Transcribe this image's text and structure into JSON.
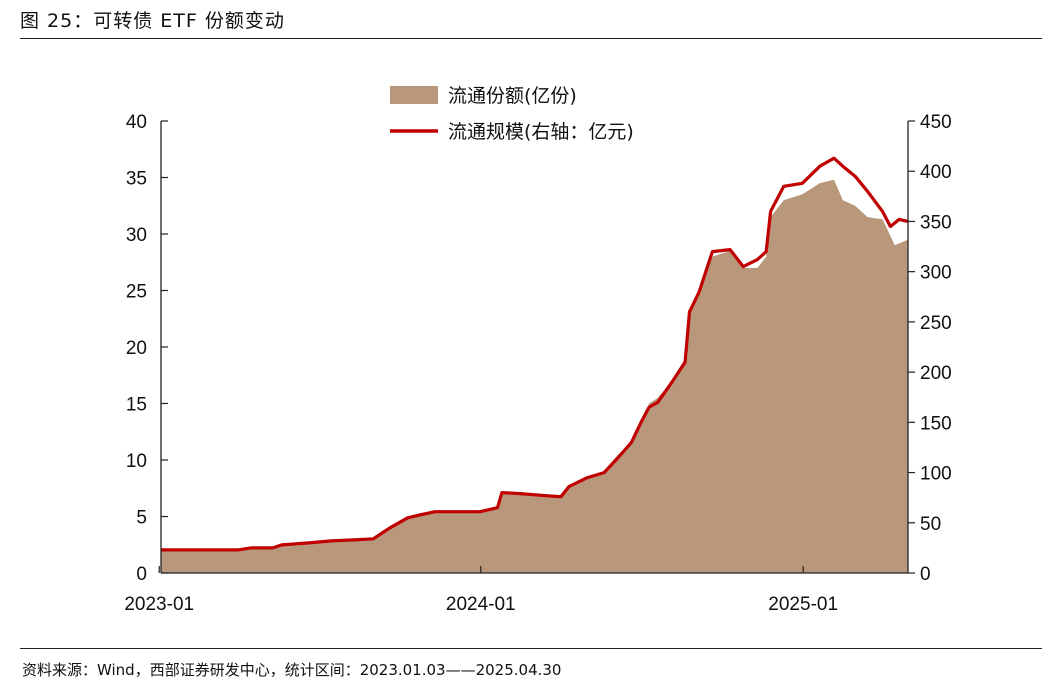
{
  "figure": {
    "title": "图 25：可转债 ETF 份额变动",
    "source": "资料来源：Wind，西部证券研发中心，统计区间：2023.01.03——2025.04.30"
  },
  "chart_data": {
    "type": "area",
    "title": "",
    "x_ticks": [
      "2023-01",
      "2024-01",
      "2025-01"
    ],
    "x_range": [
      "2023-01-03",
      "2025-04-30"
    ],
    "legend_position": "top-center",
    "grid": false,
    "left_axis": {
      "ylim": [
        0,
        40
      ],
      "ticks": [
        0,
        5,
        10,
        15,
        20,
        25,
        30,
        35,
        40
      ]
    },
    "right_axis": {
      "ylim": [
        0,
        450
      ],
      "ticks": [
        0,
        50,
        100,
        150,
        200,
        250,
        300,
        350,
        400,
        450
      ]
    },
    "series": [
      {
        "name": "流通份额(亿份)",
        "type": "area",
        "axis": "left",
        "color": "#b8977a",
        "points": [
          [
            "2023-01-03",
            2.1
          ],
          [
            "2023-02-15",
            2.1
          ],
          [
            "2023-03-31",
            2.0
          ],
          [
            "2023-04-10",
            2.2
          ],
          [
            "2023-05-10",
            2.2
          ],
          [
            "2023-05-20",
            2.5
          ],
          [
            "2023-06-20",
            2.6
          ],
          [
            "2023-07-15",
            2.8
          ],
          [
            "2023-08-10",
            2.9
          ],
          [
            "2023-09-01",
            3.0
          ],
          [
            "2023-09-20",
            4.0
          ],
          [
            "2023-10-10",
            5.0
          ],
          [
            "2023-10-25",
            5.3
          ],
          [
            "2023-11-15",
            5.4
          ],
          [
            "2023-12-10",
            5.4
          ],
          [
            "2023-12-31",
            5.5
          ],
          [
            "2024-01-20",
            5.8
          ],
          [
            "2024-01-25",
            7.1
          ],
          [
            "2024-02-15",
            7.0
          ],
          [
            "2024-03-15",
            6.9
          ],
          [
            "2024-04-01",
            6.8
          ],
          [
            "2024-04-15",
            8.0
          ],
          [
            "2024-05-01",
            8.5
          ],
          [
            "2024-05-20",
            9.0
          ],
          [
            "2024-06-05",
            10.5
          ],
          [
            "2024-06-20",
            11.5
          ],
          [
            "2024-07-01",
            13.0
          ],
          [
            "2024-07-10",
            15.0
          ],
          [
            "2024-07-20",
            15.5
          ],
          [
            "2024-08-05",
            17.0
          ],
          [
            "2024-08-20",
            19.0
          ],
          [
            "2024-08-25",
            23.0
          ],
          [
            "2024-09-05",
            25.0
          ],
          [
            "2024-09-20",
            28.0
          ],
          [
            "2024-10-10",
            28.5
          ],
          [
            "2024-10-25",
            27.0
          ],
          [
            "2024-11-10",
            27.0
          ],
          [
            "2024-11-20",
            28.0
          ],
          [
            "2024-11-25",
            31.5
          ],
          [
            "2024-12-10",
            33.0
          ],
          [
            "2024-12-31",
            33.5
          ],
          [
            "2025-01-20",
            34.5
          ],
          [
            "2025-02-05",
            34.8
          ],
          [
            "2025-02-15",
            33.0
          ],
          [
            "2025-03-01",
            32.5
          ],
          [
            "2025-03-15",
            31.5
          ],
          [
            "2025-04-01",
            31.3
          ],
          [
            "2025-04-15",
            29.0
          ],
          [
            "2025-04-30",
            29.5
          ]
        ]
      },
      {
        "name": "流通规模(右轴：亿元)",
        "type": "line",
        "axis": "right",
        "color": "#c00000",
        "points": [
          [
            "2023-01-03",
            23
          ],
          [
            "2023-02-15",
            23
          ],
          [
            "2023-03-31",
            23
          ],
          [
            "2023-04-15",
            25
          ],
          [
            "2023-05-10",
            25
          ],
          [
            "2023-05-20",
            28
          ],
          [
            "2023-06-20",
            30
          ],
          [
            "2023-07-15",
            32
          ],
          [
            "2023-08-10",
            33
          ],
          [
            "2023-09-01",
            34
          ],
          [
            "2023-09-20",
            45
          ],
          [
            "2023-10-10",
            55
          ],
          [
            "2023-10-25",
            58
          ],
          [
            "2023-11-10",
            61
          ],
          [
            "2023-12-10",
            61
          ],
          [
            "2023-12-31",
            61
          ],
          [
            "2024-01-20",
            65
          ],
          [
            "2024-01-25",
            80
          ],
          [
            "2024-02-15",
            79
          ],
          [
            "2024-03-15",
            77
          ],
          [
            "2024-04-01",
            76
          ],
          [
            "2024-04-10",
            86
          ],
          [
            "2024-05-01",
            95
          ],
          [
            "2024-05-20",
            100
          ],
          [
            "2024-06-05",
            115
          ],
          [
            "2024-06-20",
            130
          ],
          [
            "2024-07-01",
            150
          ],
          [
            "2024-07-10",
            165
          ],
          [
            "2024-07-20",
            170
          ],
          [
            "2024-08-05",
            190
          ],
          [
            "2024-08-20",
            210
          ],
          [
            "2024-08-25",
            260
          ],
          [
            "2024-09-05",
            280
          ],
          [
            "2024-09-20",
            320
          ],
          [
            "2024-10-10",
            322
          ],
          [
            "2024-10-25",
            305
          ],
          [
            "2024-11-10",
            312
          ],
          [
            "2024-11-20",
            320
          ],
          [
            "2024-11-25",
            360
          ],
          [
            "2024-12-10",
            385
          ],
          [
            "2024-12-31",
            388
          ],
          [
            "2025-01-20",
            405
          ],
          [
            "2025-02-05",
            413
          ],
          [
            "2025-02-15",
            405
          ],
          [
            "2025-03-01",
            395
          ],
          [
            "2025-03-15",
            380
          ],
          [
            "2025-04-01",
            360
          ],
          [
            "2025-04-10",
            345
          ],
          [
            "2025-04-20",
            352
          ],
          [
            "2025-04-30",
            350
          ]
        ]
      }
    ]
  }
}
